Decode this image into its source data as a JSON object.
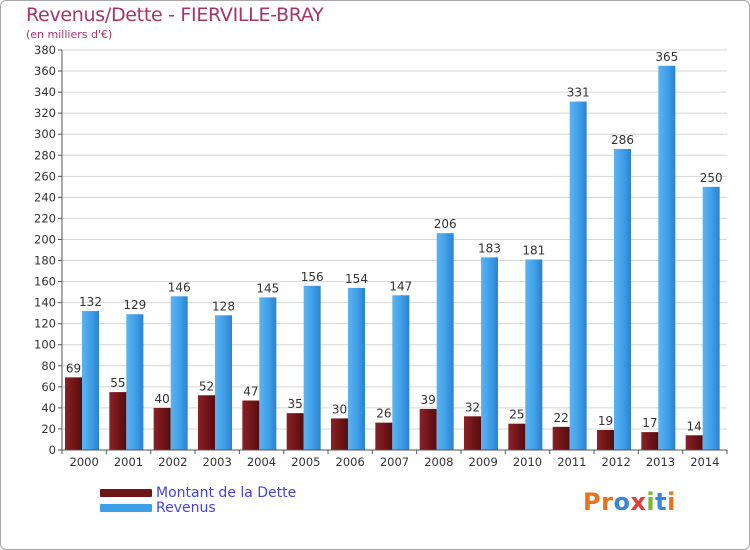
{
  "title": "Revenus/Dette - FIERVILLE-BRAY",
  "subtitle": "(en milliers d'€)",
  "colors": {
    "debt": "#6e1518",
    "revenue": "#3f9ee8",
    "title": "#a8336a",
    "legend_text": "#4444dd",
    "grid": "#d6d6d6"
  },
  "legend": [
    {
      "label": "Montant de la Dette",
      "color": "#6e1518"
    },
    {
      "label": "Revenus",
      "color": "#3f9ee8"
    }
  ],
  "logo": {
    "letters": [
      "P",
      "r",
      "o",
      "x",
      "i",
      "t",
      "i"
    ],
    "colors": [
      "#e8731d",
      "#e8731d",
      "#3a86d8",
      "#e23b3b",
      "#7cb82f",
      "#3a86d8",
      "#e8731d"
    ]
  },
  "chart_data": {
    "type": "bar",
    "categories": [
      "2000",
      "2001",
      "2002",
      "2003",
      "2004",
      "2005",
      "2006",
      "2007",
      "2008",
      "2009",
      "2010",
      "2011",
      "2012",
      "2013",
      "2014"
    ],
    "series": [
      {
        "name": "Montant de la Dette",
        "values": [
          69,
          55,
          40,
          52,
          47,
          35,
          30,
          26,
          39,
          32,
          25,
          22,
          19,
          17,
          14
        ]
      },
      {
        "name": "Revenus",
        "values": [
          132,
          129,
          146,
          128,
          145,
          156,
          154,
          147,
          206,
          183,
          181,
          331,
          286,
          365,
          250
        ]
      }
    ],
    "title": "Revenus/Dette - FIERVILLE-BRAY",
    "ylabel": "(en milliers d'€)",
    "xlabel": "",
    "ylim": [
      0,
      380
    ],
    "yticks": [
      "0",
      "20",
      "40",
      "60",
      "80",
      "100",
      "120",
      "140",
      "160",
      "180",
      "200",
      "220",
      "240",
      "260",
      "280",
      "300",
      "320",
      "340",
      "360",
      "380"
    ],
    "grid": true,
    "legend_position": "bottom-left"
  }
}
